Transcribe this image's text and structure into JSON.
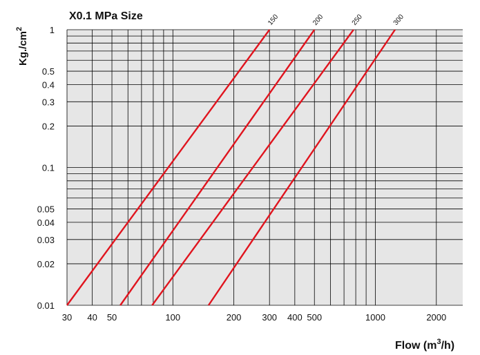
{
  "chart_data": {
    "type": "line",
    "title": "X0.1 MPa Size",
    "xlabel_base": "Flow (m",
    "xlabel_sup": "3",
    "xlabel_tail": "/h)",
    "ylabel_base": "Kg./cm",
    "ylabel_sup": "2",
    "x_scale": "log",
    "y_scale": "log",
    "xlim": [
      30,
      2700
    ],
    "ylim": [
      0.01,
      1
    ],
    "grid": true,
    "xticks": [
      30,
      40,
      50,
      100,
      200,
      300,
      400,
      500,
      1000,
      2000
    ],
    "xtick_labels": [
      "30",
      "40",
      "50",
      "100",
      "200",
      "300",
      "400",
      "500",
      "1000",
      "2000"
    ],
    "yticks": [
      0.01,
      0.02,
      0.03,
      0.04,
      0.05,
      0.1,
      0.2,
      0.3,
      0.4,
      0.5,
      1
    ],
    "ytick_labels": [
      "0.01",
      "0.02",
      "0.03",
      "0.04",
      "0.05",
      "0.1",
      "0.2",
      "0.3",
      "0.4",
      "0.5",
      "1"
    ],
    "series": [
      {
        "name": "150",
        "x": [
          30,
          300
        ],
        "y": [
          0.01,
          1
        ]
      },
      {
        "name": "200",
        "x": [
          55,
          500
        ],
        "y": [
          0.01,
          1
        ]
      },
      {
        "name": "250",
        "x": [
          79,
          780
        ],
        "y": [
          0.01,
          1
        ]
      },
      {
        "name": "300",
        "x": [
          150,
          1250
        ],
        "y": [
          0.01,
          1
        ]
      }
    ],
    "colors": {
      "series": "#e0141e",
      "grid": "#000000",
      "background": "#e6e6e6"
    }
  }
}
